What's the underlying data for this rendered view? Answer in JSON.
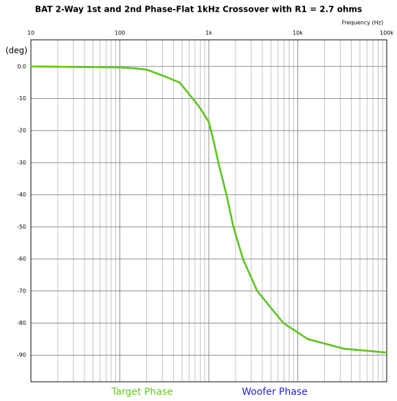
{
  "chart_data": {
    "type": "line",
    "title": "BAT 2-Way 1st and 2nd Phase-Flat 1kHz Crossover with R1 = 2.7 ohms",
    "x_label": "Frequency  (Hz)",
    "y_label": "(deg)",
    "x": [
      10,
      100,
      150,
      200,
      300,
      470,
      660,
      800,
      1000,
      1150,
      1280,
      1580,
      1890,
      2420,
      3500,
      6900,
      13000,
      33000,
      100000
    ],
    "series": [
      {
        "name": "Target Phase",
        "color": "#5fcc14",
        "values": [
          0,
          -0.3,
          -0.6,
          -1,
          -2.8,
          -5,
          -10,
          -13,
          -17.3,
          -24,
          -30,
          -40,
          -50,
          -60,
          -70,
          -80,
          -85,
          -88,
          -89.2
        ]
      },
      {
        "name": "Woofer Phase",
        "color": "#2222dd",
        "values": [
          0,
          -0.3,
          -0.6,
          -1,
          -2.8,
          -5,
          -10,
          -13,
          -17.3,
          -24,
          -30,
          -40,
          -50,
          -60,
          -70,
          -80,
          -85,
          -88,
          -89.2
        ]
      }
    ],
    "xlim": [
      10,
      100000
    ],
    "ylim": [
      -98.3,
      8.3
    ],
    "log_x": true,
    "grid": true,
    "legend": "bottom",
    "xticks": [
      10,
      100,
      {
        "value": 1000,
        "label": "1k"
      },
      {
        "value": 10000,
        "label": "10k"
      },
      {
        "value": 100000,
        "label": "100k"
      }
    ],
    "yticks": [
      {
        "value": 0,
        "label": "0.0"
      },
      -10,
      -20,
      -30,
      -40,
      -50,
      -60,
      -70,
      -80,
      -90
    ]
  }
}
